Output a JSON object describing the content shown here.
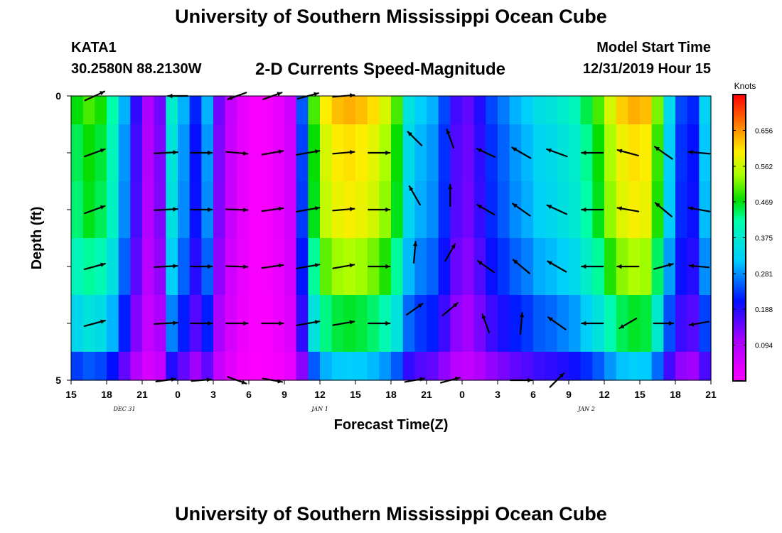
{
  "header": {
    "title": "University of Southern Mississippi Ocean Cube",
    "station": "KATA1",
    "coords": "30.2580N 88.2130W",
    "subtitle": "2-D Currents Speed-Magnitude",
    "model_start_label": "Model Start Time",
    "model_start_value": "12/31/2019 Hour 15"
  },
  "footer": {
    "title": "University of Southern Mississippi Ocean Cube"
  },
  "chart_data": {
    "type": "heatmap",
    "title": "2-D Currents Speed-Magnitude",
    "xlabel": "Forecast Time(Z)",
    "ylabel": "Depth (ft)",
    "x_range_hours": [
      0,
      54
    ],
    "y_range_ft": [
      0,
      5
    ],
    "x_tick_labels": [
      "15",
      "18",
      "21",
      "0",
      "3",
      "6",
      "9",
      "12",
      "15",
      "18",
      "21",
      "0",
      "3",
      "6",
      "9",
      "12",
      "15",
      "18",
      "21"
    ],
    "y_tick_labels": [
      "0",
      "5"
    ],
    "date_labels": [
      {
        "text": "DEC  31",
        "hour": 4.5
      },
      {
        "text": "JAN  1",
        "hour": 21
      },
      {
        "text": "JAN  2",
        "hour": 43.5
      }
    ],
    "colorbar": {
      "unit": "Knots",
      "range": [
        0,
        0.75
      ],
      "ticks": [
        "0.656",
        "0.562",
        "0.469",
        "0.375",
        "0.281",
        "0.188",
        "0.094"
      ]
    },
    "depth_bands_ft": [
      0,
      0.5,
      1.5,
      2.5,
      3.5,
      4.5,
      5
    ],
    "speed_profile_knots": [
      0.47,
      0.5,
      0.48,
      0.42,
      0.3,
      0.18,
      0.1,
      0.14,
      0.38,
      0.3,
      0.22,
      0.3,
      0.14,
      0.07,
      0.03,
      0.01,
      0.01,
      0.03,
      0.06,
      0.25,
      0.5,
      0.6,
      0.63,
      0.64,
      0.63,
      0.61,
      0.57,
      0.5,
      0.36,
      0.32,
      0.3,
      0.24,
      0.17,
      0.15,
      0.19,
      0.24,
      0.27,
      0.3,
      0.32,
      0.35,
      0.36,
      0.38,
      0.4,
      0.45,
      0.5,
      0.57,
      0.62,
      0.64,
      0.63,
      0.52,
      0.34,
      0.24,
      0.22,
      0.33,
      0.4
    ],
    "band_scale": [
      1.0,
      0.95,
      0.93,
      0.85,
      0.72,
      0.5
    ],
    "vectors": [
      {
        "hour": 2,
        "depth": 0,
        "dir_deg": 25,
        "mag": 0.6
      },
      {
        "hour": 2,
        "depth": 1,
        "dir_deg": 20,
        "mag": 0.6
      },
      {
        "hour": 2,
        "depth": 2,
        "dir_deg": 20,
        "mag": 0.6
      },
      {
        "hour": 2,
        "depth": 3,
        "dir_deg": 15,
        "mag": 0.6
      },
      {
        "hour": 2,
        "depth": 4,
        "dir_deg": 15,
        "mag": 0.6
      },
      {
        "hour": 8,
        "depth": 1,
        "dir_deg": 3,
        "mag": 0.65
      },
      {
        "hour": 8,
        "depth": 2,
        "dir_deg": 3,
        "mag": 0.65
      },
      {
        "hour": 8,
        "depth": 3,
        "dir_deg": 3,
        "mag": 0.65
      },
      {
        "hour": 8,
        "depth": 4,
        "dir_deg": 3,
        "mag": 0.65
      },
      {
        "hour": 8,
        "depth": 5,
        "dir_deg": 8,
        "mag": 0.55
      },
      {
        "hour": 9,
        "depth": 0,
        "dir_deg": 180,
        "mag": 0.55
      },
      {
        "hour": 11,
        "depth": 1,
        "dir_deg": 0,
        "mag": 0.6
      },
      {
        "hour": 11,
        "depth": 2,
        "dir_deg": 0,
        "mag": 0.6
      },
      {
        "hour": 11,
        "depth": 3,
        "dir_deg": 0,
        "mag": 0.6
      },
      {
        "hour": 11,
        "depth": 4,
        "dir_deg": 0,
        "mag": 0.6
      },
      {
        "hour": 11,
        "depth": 5,
        "dir_deg": 5,
        "mag": 0.55
      },
      {
        "hour": 14,
        "depth": 0,
        "dir_deg": 200,
        "mag": 0.55
      },
      {
        "hour": 14,
        "depth": 1,
        "dir_deg": -5,
        "mag": 0.6
      },
      {
        "hour": 14,
        "depth": 2,
        "dir_deg": -2,
        "mag": 0.6
      },
      {
        "hour": 14,
        "depth": 3,
        "dir_deg": -2,
        "mag": 0.6
      },
      {
        "hour": 14,
        "depth": 4,
        "dir_deg": 0,
        "mag": 0.6
      },
      {
        "hour": 14,
        "depth": 5,
        "dir_deg": -20,
        "mag": 0.55
      },
      {
        "hour": 17,
        "depth": 0,
        "dir_deg": 20,
        "mag": 0.55
      },
      {
        "hour": 17,
        "depth": 1,
        "dir_deg": 10,
        "mag": 0.6
      },
      {
        "hour": 17,
        "depth": 2,
        "dir_deg": 8,
        "mag": 0.6
      },
      {
        "hour": 17,
        "depth": 3,
        "dir_deg": 8,
        "mag": 0.6
      },
      {
        "hour": 17,
        "depth": 4,
        "dir_deg": 0,
        "mag": 0.6
      },
      {
        "hour": 17,
        "depth": 5,
        "dir_deg": -10,
        "mag": 0.55
      },
      {
        "hour": 20,
        "depth": 0,
        "dir_deg": 15,
        "mag": 0.6
      },
      {
        "hour": 20,
        "depth": 1,
        "dir_deg": 10,
        "mag": 0.65
      },
      {
        "hour": 20,
        "depth": 2,
        "dir_deg": 10,
        "mag": 0.65
      },
      {
        "hour": 20,
        "depth": 3,
        "dir_deg": 10,
        "mag": 0.65
      },
      {
        "hour": 20,
        "depth": 4,
        "dir_deg": 10,
        "mag": 0.65
      },
      {
        "hour": 23,
        "depth": 0,
        "dir_deg": 5,
        "mag": 0.6
      },
      {
        "hour": 23,
        "depth": 1,
        "dir_deg": 5,
        "mag": 0.6
      },
      {
        "hour": 23,
        "depth": 2,
        "dir_deg": 5,
        "mag": 0.6
      },
      {
        "hour": 23,
        "depth": 3,
        "dir_deg": 10,
        "mag": 0.6
      },
      {
        "hour": 23,
        "depth": 4,
        "dir_deg": 10,
        "mag": 0.6
      },
      {
        "hour": 26,
        "depth": 1,
        "dir_deg": 0,
        "mag": 0.6
      },
      {
        "hour": 26,
        "depth": 2,
        "dir_deg": 0,
        "mag": 0.6
      },
      {
        "hour": 26,
        "depth": 3,
        "dir_deg": 0,
        "mag": 0.6
      },
      {
        "hour": 26,
        "depth": 4,
        "dir_deg": 0,
        "mag": 0.6
      },
      {
        "hour": 29,
        "depth": 0.75,
        "dir_deg": 135,
        "mag": 0.55
      },
      {
        "hour": 29,
        "depth": 1.75,
        "dir_deg": 120,
        "mag": 0.6
      },
      {
        "hour": 29,
        "depth": 2.75,
        "dir_deg": 85,
        "mag": 0.6
      },
      {
        "hour": 29,
        "depth": 3.75,
        "dir_deg": 35,
        "mag": 0.55
      },
      {
        "hour": 29,
        "depth": 5,
        "dir_deg": 10,
        "mag": 0.55
      },
      {
        "hour": 32,
        "depth": 0.75,
        "dir_deg": 110,
        "mag": 0.55
      },
      {
        "hour": 32,
        "depth": 1.75,
        "dir_deg": 90,
        "mag": 0.6
      },
      {
        "hour": 32,
        "depth": 2.75,
        "dir_deg": 60,
        "mag": 0.55
      },
      {
        "hour": 32,
        "depth": 3.75,
        "dir_deg": 40,
        "mag": 0.55
      },
      {
        "hour": 32,
        "depth": 5,
        "dir_deg": 15,
        "mag": 0.55
      },
      {
        "hour": 35,
        "depth": 1,
        "dir_deg": 155,
        "mag": 0.55
      },
      {
        "hour": 35,
        "depth": 2,
        "dir_deg": 150,
        "mag": 0.55
      },
      {
        "hour": 35,
        "depth": 3,
        "dir_deg": 145,
        "mag": 0.55
      },
      {
        "hour": 35,
        "depth": 4,
        "dir_deg": 110,
        "mag": 0.55
      },
      {
        "hour": 38,
        "depth": 1,
        "dir_deg": 150,
        "mag": 0.6
      },
      {
        "hour": 38,
        "depth": 2,
        "dir_deg": 145,
        "mag": 0.6
      },
      {
        "hour": 38,
        "depth": 3,
        "dir_deg": 140,
        "mag": 0.6
      },
      {
        "hour": 38,
        "depth": 4,
        "dir_deg": 85,
        "mag": 0.6
      },
      {
        "hour": 38,
        "depth": 5,
        "dir_deg": 0,
        "mag": 0.6
      },
      {
        "hour": 41,
        "depth": 1,
        "dir_deg": 160,
        "mag": 0.6
      },
      {
        "hour": 41,
        "depth": 2,
        "dir_deg": 155,
        "mag": 0.6
      },
      {
        "hour": 41,
        "depth": 3,
        "dir_deg": 150,
        "mag": 0.6
      },
      {
        "hour": 41,
        "depth": 4,
        "dir_deg": 145,
        "mag": 0.6
      },
      {
        "hour": 41,
        "depth": 5,
        "dir_deg": 45,
        "mag": 0.55
      },
      {
        "hour": 44,
        "depth": 1,
        "dir_deg": 180,
        "mag": 0.6
      },
      {
        "hour": 44,
        "depth": 2,
        "dir_deg": 180,
        "mag": 0.6
      },
      {
        "hour": 44,
        "depth": 3,
        "dir_deg": 180,
        "mag": 0.6
      },
      {
        "hour": 44,
        "depth": 4,
        "dir_deg": 180,
        "mag": 0.6
      },
      {
        "hour": 47,
        "depth": 1,
        "dir_deg": 165,
        "mag": 0.6
      },
      {
        "hour": 47,
        "depth": 2,
        "dir_deg": 170,
        "mag": 0.6
      },
      {
        "hour": 47,
        "depth": 3,
        "dir_deg": 180,
        "mag": 0.6
      },
      {
        "hour": 47,
        "depth": 4,
        "dir_deg": 210,
        "mag": 0.55
      },
      {
        "hour": 50,
        "depth": 1,
        "dir_deg": 145,
        "mag": 0.6
      },
      {
        "hour": 50,
        "depth": 2,
        "dir_deg": 140,
        "mag": 0.6
      },
      {
        "hour": 50,
        "depth": 3,
        "dir_deg": 15,
        "mag": 0.55
      },
      {
        "hour": 50,
        "depth": 4,
        "dir_deg": 0,
        "mag": 0.55
      },
      {
        "hour": 53,
        "depth": 1,
        "dir_deg": 175,
        "mag": 0.6
      },
      {
        "hour": 53,
        "depth": 2,
        "dir_deg": 170,
        "mag": 0.6
      },
      {
        "hour": 53,
        "depth": 3,
        "dir_deg": 175,
        "mag": 0.55
      },
      {
        "hour": 53,
        "depth": 4,
        "dir_deg": 190,
        "mag": 0.55
      }
    ]
  }
}
